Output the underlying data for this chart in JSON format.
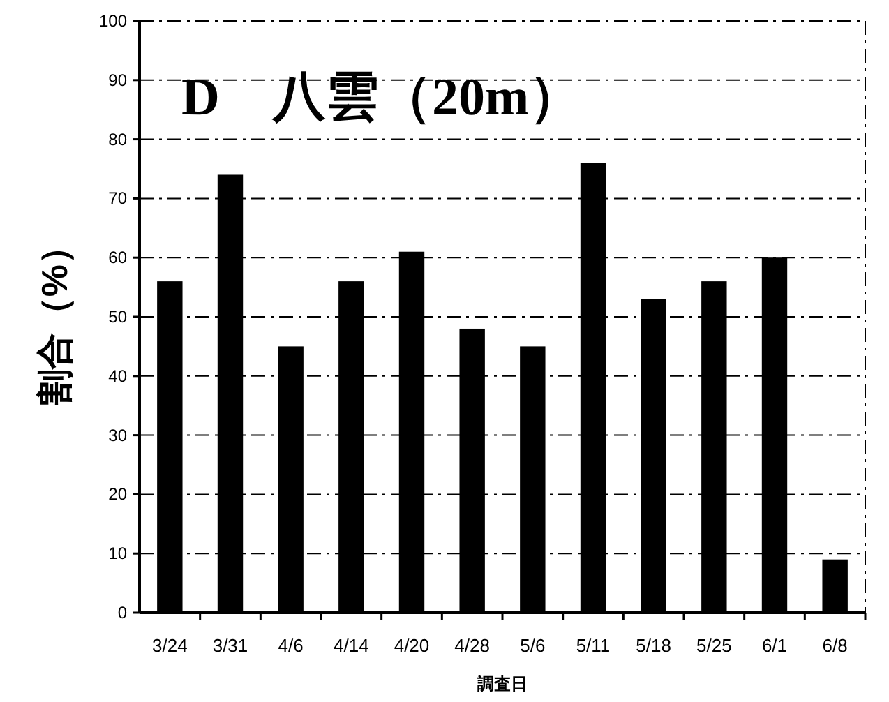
{
  "chart_data": {
    "type": "bar",
    "title": "D　八雲（20m）",
    "xlabel": "調査日",
    "ylabel": "割合（%）",
    "categories": [
      "3/24",
      "3/31",
      "4/6",
      "4/14",
      "4/20",
      "4/28",
      "5/6",
      "5/11",
      "5/18",
      "5/25",
      "6/1",
      "6/8"
    ],
    "values": [
      56,
      74,
      45,
      56,
      61,
      48,
      45,
      76,
      53,
      56,
      60,
      9
    ],
    "color": "#000000",
    "ylim": [
      0,
      100
    ],
    "yticks": [
      0,
      10,
      20,
      30,
      40,
      50,
      60,
      70,
      80,
      90,
      100
    ],
    "grid": "y"
  }
}
